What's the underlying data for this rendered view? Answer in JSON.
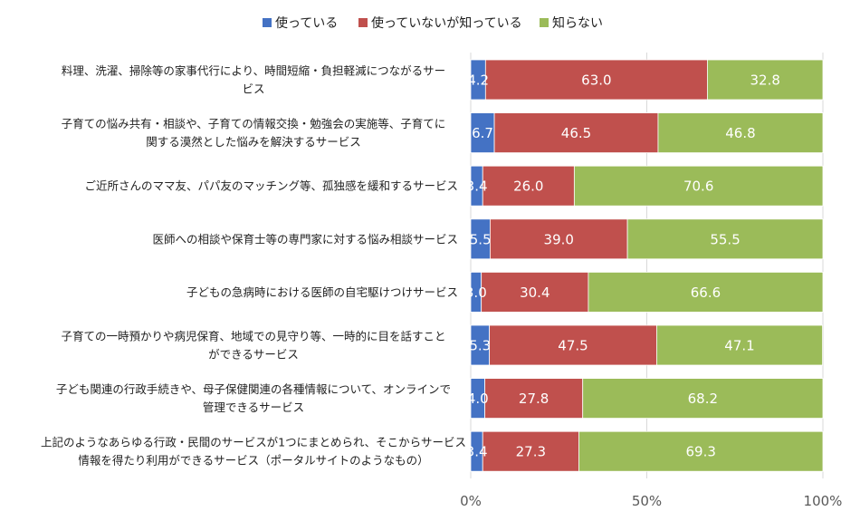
{
  "chart_data": {
    "type": "bar",
    "orientation": "horizontal",
    "stacked": "percent",
    "categories": [
      [
        "料理、洗濯、掃除等の家事代行により、時間短縮・負担軽減につながるサー",
        "ビス"
      ],
      [
        "子育ての悩み共有・相談や、子育ての情報交換・勉強会の実施等、子育てに",
        "関する漠然とした悩みを解決するサービス"
      ],
      [
        "ご近所さんのママ友、パパ友のマッチング等、孤独感を緩和するサービス"
      ],
      [
        "医師への相談や保育士等の専門家に対する悩み相談サービス"
      ],
      [
        "子どもの急病時における医師の自宅駆けつけサービス"
      ],
      [
        "子育ての一時預かりや病児保育、地域での見守り等、一時的に目を話すこと",
        "ができるサービス"
      ],
      [
        "子ども関連の行政手続きや、母子保健関連の各種情報について、オンラインで",
        "管理できるサービス"
      ],
      [
        "上記のようなあらゆる行政・民間のサービスが1つにまとめられ、そこからサービス",
        "情報を得たり利用ができるサービス（ポータルサイトのようなもの）"
      ]
    ],
    "series": [
      {
        "name": "使っている",
        "color": "#4472C4",
        "values": [
          4.2,
          6.7,
          3.4,
          5.5,
          3.0,
          5.3,
          4.0,
          3.4
        ]
      },
      {
        "name": "使っていないが知っている",
        "color": "#C0504D",
        "values": [
          63.0,
          46.5,
          26.0,
          39.0,
          30.4,
          47.5,
          27.8,
          27.3
        ]
      },
      {
        "name": "知らない",
        "color": "#9BBB59",
        "values": [
          32.8,
          46.8,
          70.6,
          55.5,
          66.6,
          47.1,
          68.2,
          69.3
        ]
      }
    ],
    "xlim": [
      0,
      100
    ],
    "xticks": [
      "0%",
      "50%",
      "100%"
    ],
    "legend_position": "top",
    "grid": true
  }
}
